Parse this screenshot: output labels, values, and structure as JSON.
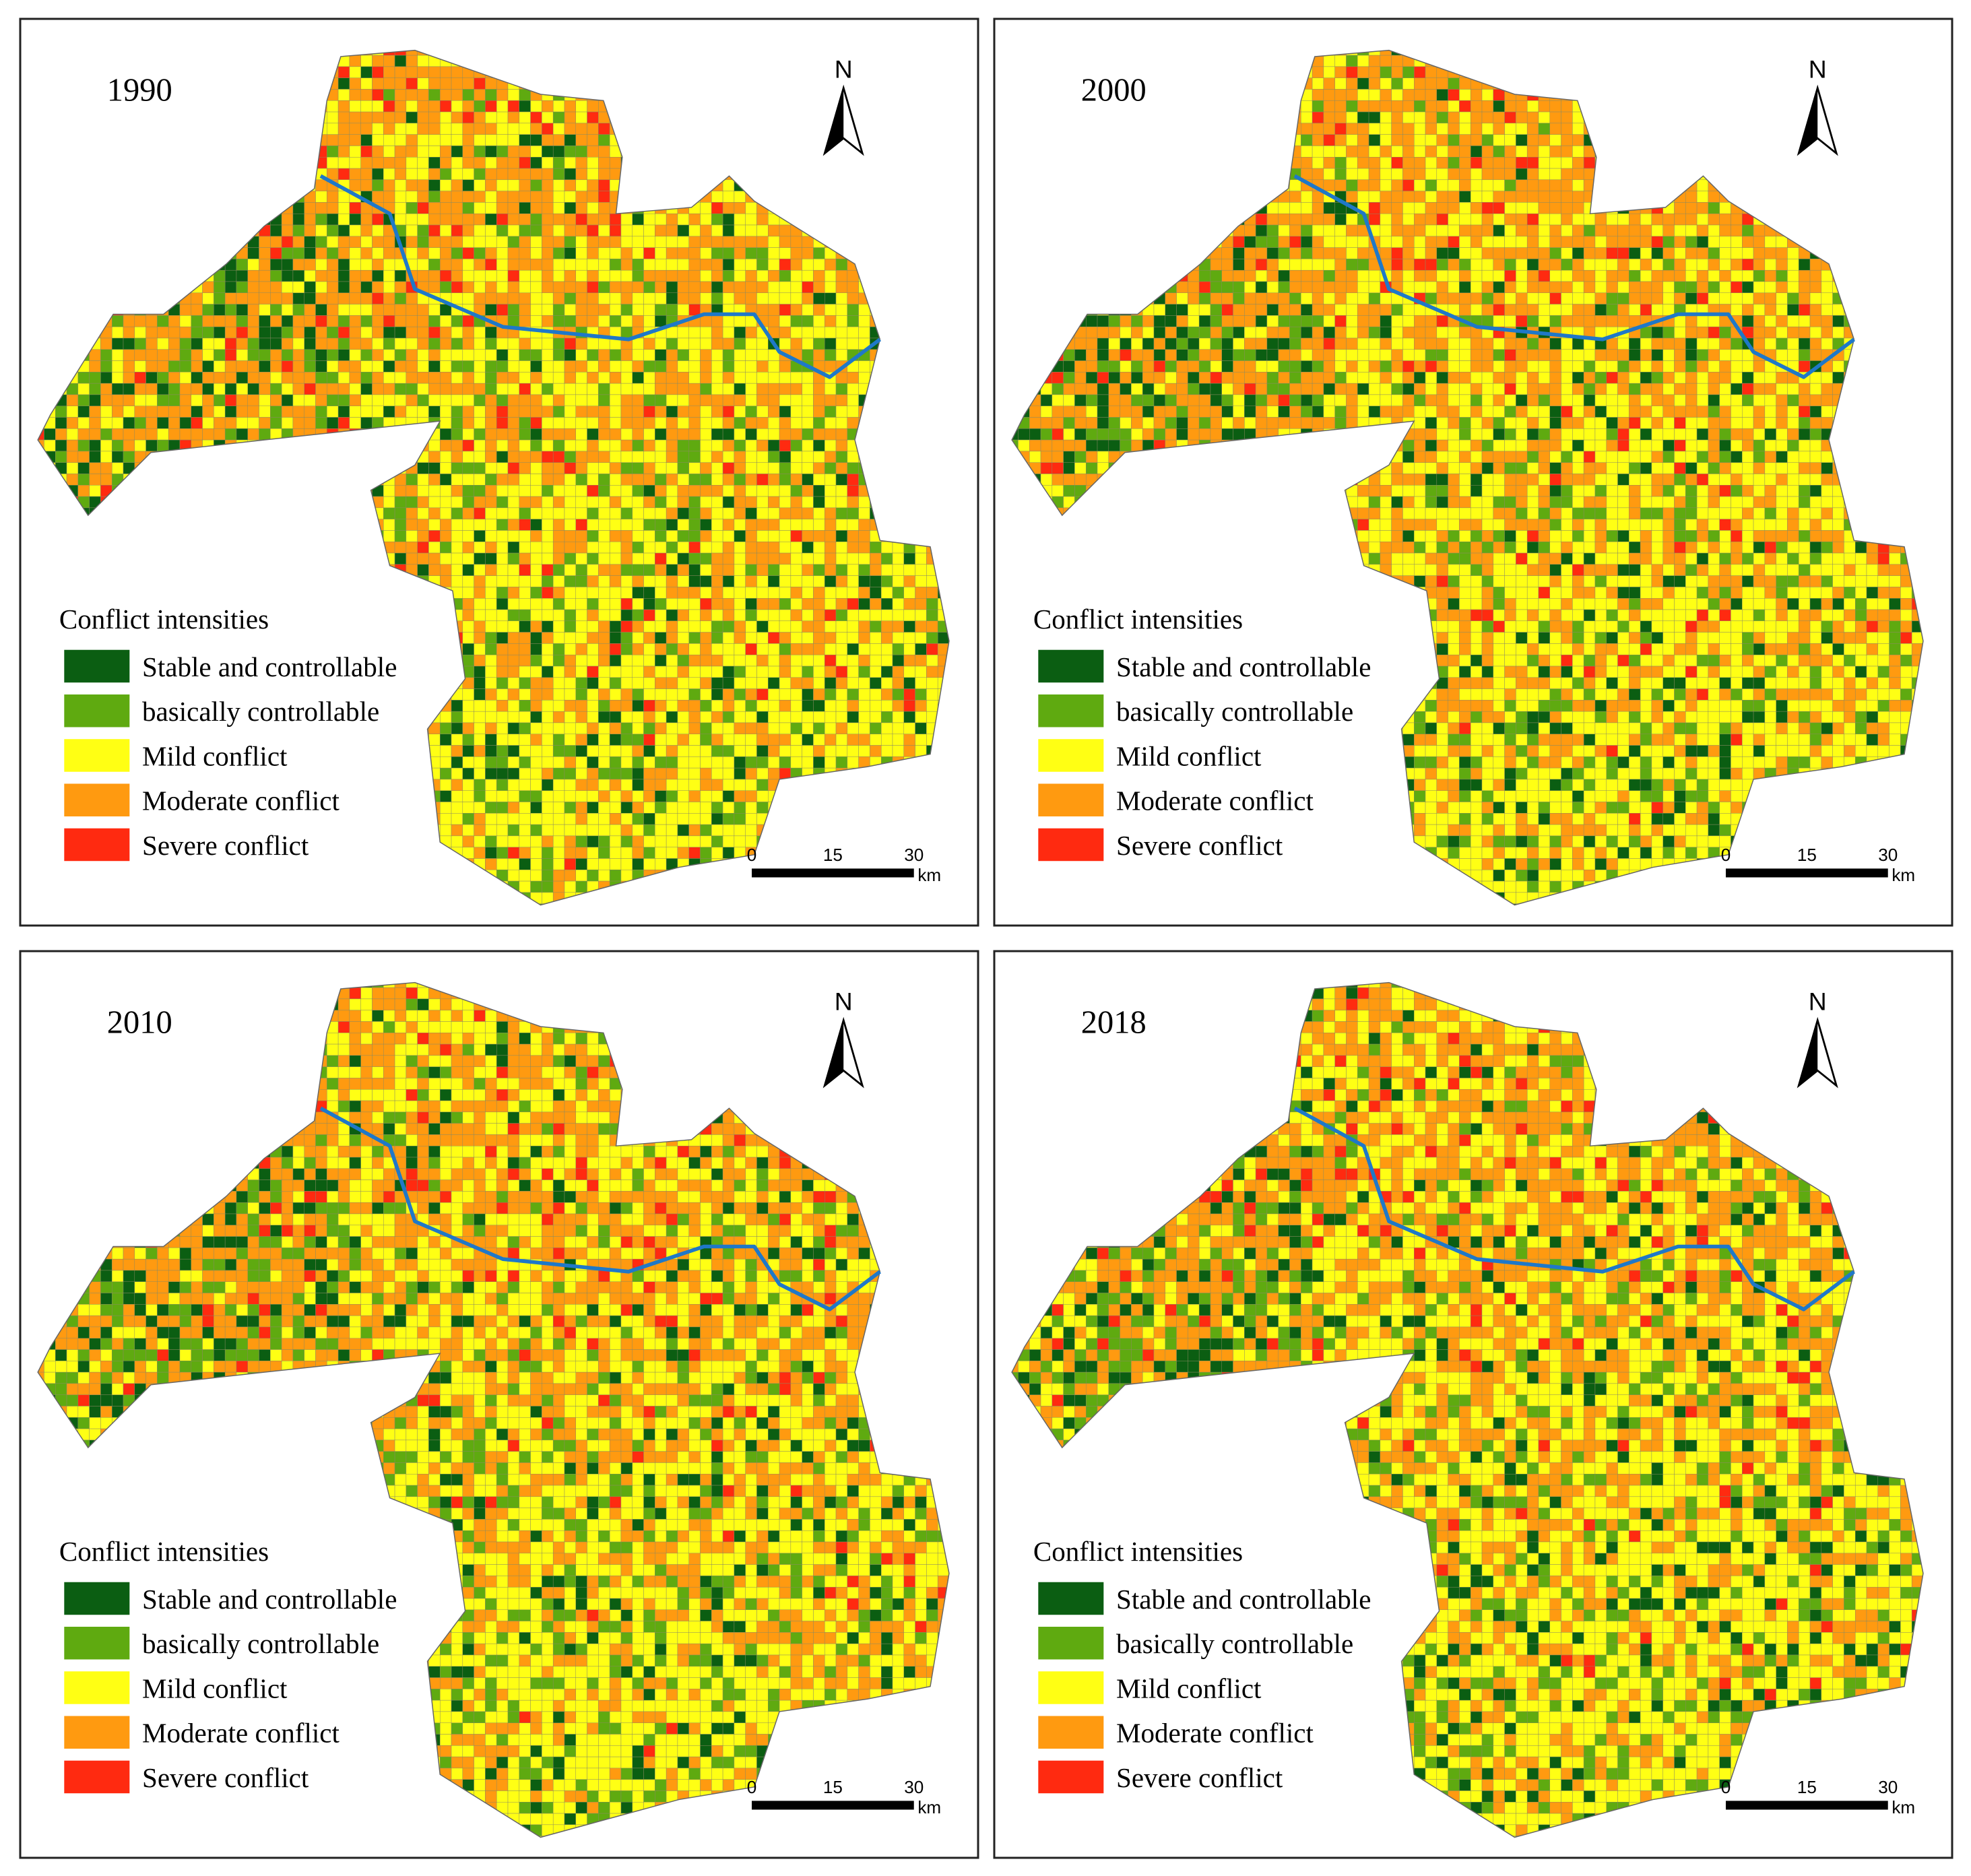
{
  "panels": [
    {
      "year": "1990"
    },
    {
      "year": "2000"
    },
    {
      "year": "2010"
    },
    {
      "year": "2018"
    }
  ],
  "legend": {
    "title": "Conflict intensities",
    "items": [
      {
        "label": "Stable and controllable",
        "color": "#0b5e12"
      },
      {
        "label": "basically controllable",
        "color": "#5faa10"
      },
      {
        "label": "Mild conflict",
        "color": "#ffff14"
      },
      {
        "label": "Moderate conflict",
        "color": "#ff9a10"
      },
      {
        "label": "Severe conflict",
        "color": "#ff2a10"
      }
    ]
  },
  "north": "N",
  "scale": {
    "ticks": [
      "0",
      "15",
      "30"
    ],
    "unit": "km"
  }
}
